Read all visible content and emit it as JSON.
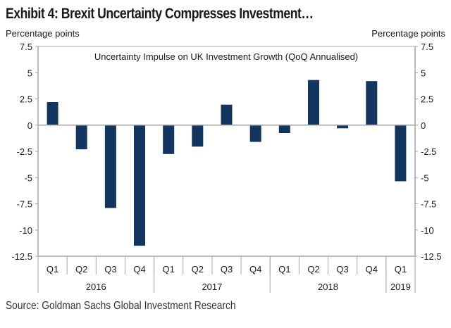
{
  "title": "Exhibit 4: Brexit Uncertainty Compresses Investment…",
  "source": "Source: Goldman Sachs Global Investment Research",
  "chart_data": {
    "type": "bar",
    "title": "Uncertainty Impulse on UK Investment Growth (QoQ Annualised)",
    "ylabel_left": "Percentage points",
    "ylabel_right": "Percentage points",
    "xlabel": "",
    "ylim": [
      -12.5,
      7.5
    ],
    "yticks": [
      7.5,
      5,
      2.5,
      0,
      -2.5,
      -5,
      -7.5,
      -10,
      -12.5
    ],
    "ytick_labels": [
      "7.5",
      "5",
      "2.5",
      "0",
      "-2.5",
      "-5",
      "-7.5",
      "-10",
      "-12.5"
    ],
    "grid": false,
    "legend": "none",
    "categories": [
      "Q1",
      "Q2",
      "Q3",
      "Q4",
      "Q1",
      "Q2",
      "Q3",
      "Q4",
      "Q1",
      "Q2",
      "Q3",
      "Q4",
      "Q1"
    ],
    "groups": [
      {
        "label": "2016",
        "count": 4
      },
      {
        "label": "2017",
        "count": 4
      },
      {
        "label": "2018",
        "count": 4
      },
      {
        "label": "2019",
        "count": 1
      }
    ],
    "series": [
      {
        "name": "Uncertainty Impulse on UK Investment Growth",
        "color": "#123660",
        "values": [
          2.2,
          -2.3,
          -7.9,
          -11.5,
          -2.75,
          -2.05,
          1.95,
          -1.6,
          -0.75,
          4.3,
          -0.3,
          4.2,
          -5.35
        ]
      }
    ]
  }
}
